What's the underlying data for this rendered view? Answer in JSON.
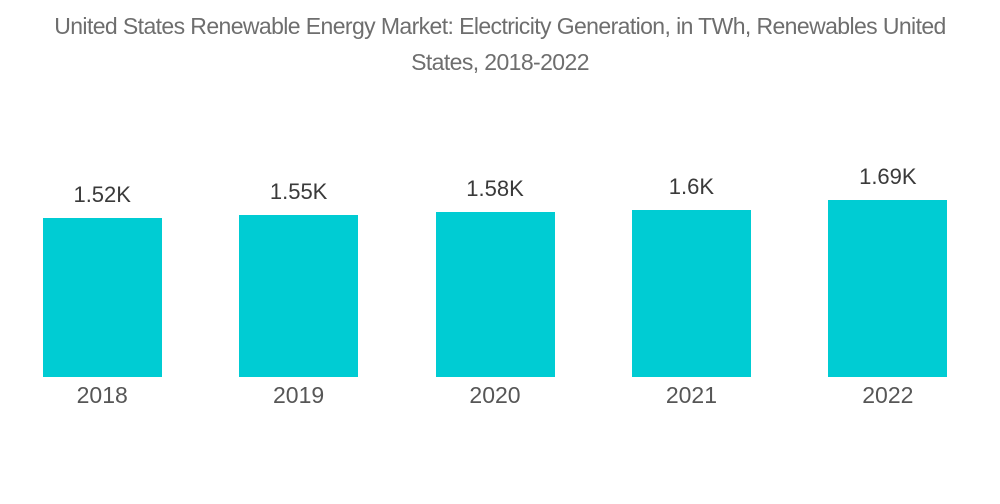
{
  "title": {
    "full": "United States Renewable Energy Market: Electricity Generation, in TWh, Renewables United States, 2018-2022",
    "line1": "United States Renewable Energy Market: Electricity Generation, in TWh, Renewables United",
    "line2": "States, 2018-2022"
  },
  "chart_data": {
    "type": "bar",
    "title": "United States Renewable Energy Market: Electricity Generation, in TWh, Renewables United States, 2018-2022",
    "categories": [
      "2018",
      "2019",
      "2020",
      "2021",
      "2022"
    ],
    "values": [
      1520,
      1550,
      1580,
      1600,
      1690
    ],
    "value_labels": [
      "1.52K",
      "1.55K",
      "1.58K",
      "1.6K",
      "1.69K"
    ],
    "unit": "TWh",
    "xlabel": "",
    "ylabel": "",
    "ylim": [
      0,
      1800
    ],
    "grid": false,
    "axes_visible": false,
    "legend": "none",
    "bar_color": "#00ccd3",
    "background_color": "#ffffff",
    "title_color": "#6e6e6e",
    "value_label_color": "#3a3a3a",
    "category_label_color": "#565656"
  }
}
